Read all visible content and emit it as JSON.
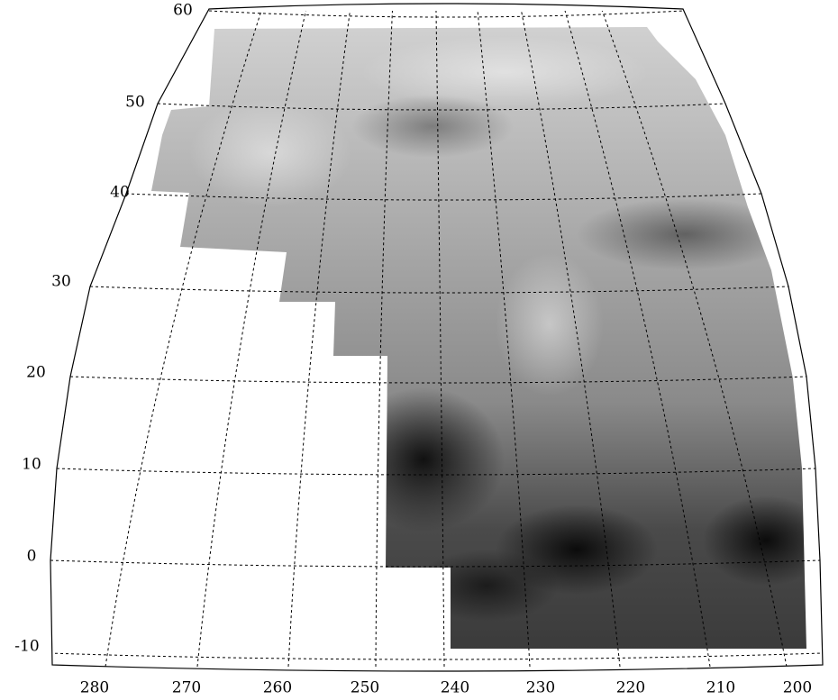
{
  "latitude_labels": [
    60,
    50,
    40,
    30,
    20,
    10,
    0,
    -10
  ],
  "longitude_labels": [
    280,
    270,
    260,
    250,
    240,
    230,
    220,
    210,
    200
  ]
}
